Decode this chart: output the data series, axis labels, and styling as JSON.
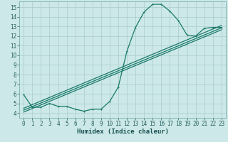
{
  "background_color": "#cce8e8",
  "grid_color": "#aacccc",
  "line_color": "#1a7a6a",
  "xlabel": "Humidex (Indice chaleur)",
  "xlim": [
    -0.5,
    23.5
  ],
  "ylim": [
    3.5,
    15.6
  ],
  "xticks": [
    0,
    1,
    2,
    3,
    4,
    5,
    6,
    7,
    8,
    9,
    10,
    11,
    12,
    13,
    14,
    15,
    16,
    17,
    18,
    19,
    20,
    21,
    22,
    23
  ],
  "yticks": [
    4,
    5,
    6,
    7,
    8,
    9,
    10,
    11,
    12,
    13,
    14,
    15
  ],
  "curve1_x": [
    0,
    1,
    2,
    3,
    4,
    5,
    6,
    7,
    8,
    9,
    10,
    11,
    12,
    13,
    14,
    15,
    16,
    17,
    18,
    19,
    20,
    21,
    22,
    23
  ],
  "curve1_y": [
    5.9,
    4.6,
    4.6,
    5.0,
    4.7,
    4.7,
    4.4,
    4.2,
    4.4,
    4.4,
    5.2,
    6.7,
    10.4,
    12.9,
    14.5,
    15.3,
    15.3,
    14.6,
    13.6,
    12.1,
    12.0,
    12.8,
    12.9,
    12.9
  ],
  "curve2_x": [
    0,
    23
  ],
  "curve2_y": [
    4.3,
    12.85
  ],
  "curve3_x": [
    0,
    23
  ],
  "curve3_y": [
    4.5,
    13.1
  ],
  "curve4_x": [
    0,
    23
  ],
  "curve4_y": [
    4.1,
    12.65
  ],
  "marker_size": 2.0,
  "line_width": 0.9,
  "tick_fontsize": 5.5,
  "xlabel_fontsize": 6.5
}
